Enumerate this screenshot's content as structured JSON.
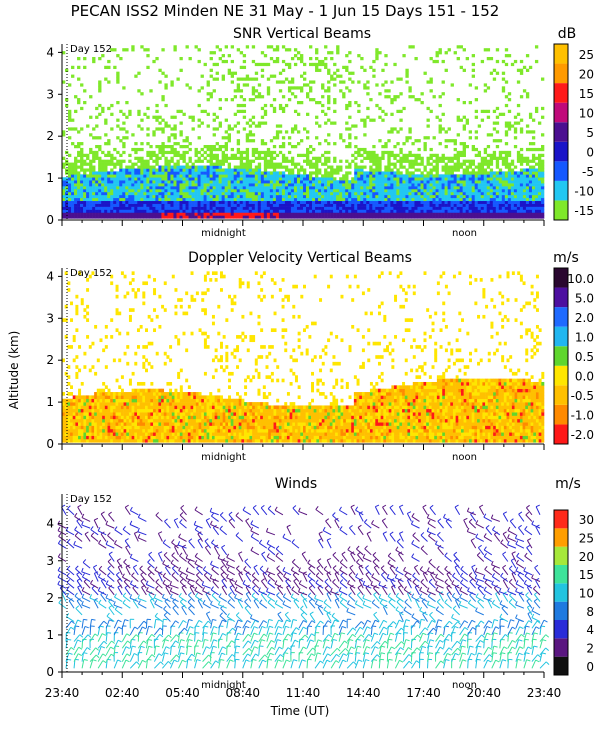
{
  "figure": {
    "title": "PECAN ISS2 Minden NE  31 May -  1 Jun 15 Days 151 - 152",
    "ylabel_shared": "Altitude (km)",
    "xlabel": "Time (UT)",
    "time_ticks": [
      "23:40",
      "02:40",
      "05:40",
      "08:40",
      "11:40",
      "14:40",
      "17:40",
      "20:40",
      "23:40"
    ],
    "midnight_label": "midnight",
    "noon_label": "noon",
    "day_marker": "Day 152"
  },
  "chart_data": [
    {
      "type": "heatmap",
      "title": "SNR Vertical Beams",
      "units": "dB",
      "ylim": [
        0,
        4.2
      ],
      "yticks": [
        "0",
        "1",
        "2",
        "3",
        "4"
      ],
      "colorbar": {
        "labels": [
          "-15",
          "-10",
          "-5",
          "0",
          "5",
          "10",
          "15",
          "20",
          "25"
        ],
        "colors": [
          "#7fe82a",
          "#22c7f2",
          "#1558ff",
          "#1a14c8",
          "#4b0f90",
          "#c00a7a",
          "#ff1a1a",
          "#ff9a00",
          "#ffc000"
        ]
      }
    },
    {
      "type": "heatmap",
      "title": "Doppler Velocity Vertical Beams",
      "units": "m/s",
      "ylim": [
        0,
        4.2
      ],
      "yticks": [
        "0",
        "1",
        "2",
        "3",
        "4"
      ],
      "colorbar": {
        "labels": [
          "-2.0",
          "-1.0",
          "-0.5",
          "0.0",
          "0.5",
          "1.0",
          "2.0",
          "5.0",
          "10.0"
        ],
        "colors": [
          "#ff1818",
          "#ff8a00",
          "#ffc000",
          "#ffe600",
          "#5fd62e",
          "#21b6f0",
          "#1f6aff",
          "#4d0fa0",
          "#2a0830"
        ]
      }
    },
    {
      "type": "scatter",
      "title": "Winds",
      "units": "m/s",
      "ylim": [
        0,
        4.8
      ],
      "yticks": [
        "0",
        "1",
        "2",
        "3",
        "4"
      ],
      "colorbar": {
        "labels": [
          "0",
          "2",
          "4",
          "8",
          "10",
          "15",
          "20",
          "25",
          "30"
        ],
        "colors": [
          "#101010",
          "#5a1680",
          "#2a2cd8",
          "#1f7ae0",
          "#22c4e0",
          "#3ee39a",
          "#a6e83a",
          "#ff9e00",
          "#ff2a1a"
        ]
      }
    }
  ]
}
